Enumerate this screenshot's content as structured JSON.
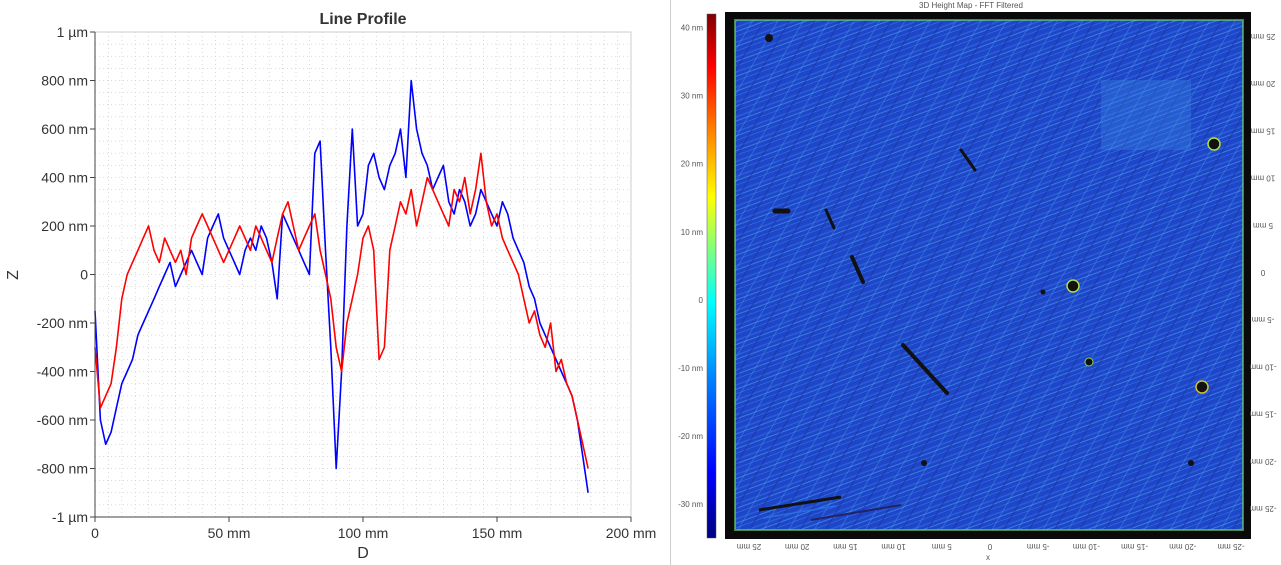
{
  "chart_data": [
    {
      "type": "line",
      "title": "Line Profile",
      "xlabel": "D",
      "ylabel": "Z",
      "xlim": [
        0,
        200
      ],
      "ylim": [
        -1000,
        1000
      ],
      "x_ticks": [
        {
          "value": 0,
          "label": "0"
        },
        {
          "value": 50,
          "label": "50 mm"
        },
        {
          "value": 100,
          "label": "100 mm"
        },
        {
          "value": 150,
          "label": "150 mm"
        },
        {
          "value": 200,
          "label": "200 mm"
        }
      ],
      "y_ticks": [
        {
          "value": 1000,
          "label": "1 µm"
        },
        {
          "value": 800,
          "label": "800 nm"
        },
        {
          "value": 600,
          "label": "600 nm"
        },
        {
          "value": 400,
          "label": "400 nm"
        },
        {
          "value": 200,
          "label": "200 nm"
        },
        {
          "value": 0,
          "label": "0"
        },
        {
          "value": -200,
          "label": "-200 nm"
        },
        {
          "value": -400,
          "label": "-400 nm"
        },
        {
          "value": -600,
          "label": "-600 nm"
        },
        {
          "value": -800,
          "label": "-800 nm"
        },
        {
          "value": -1000,
          "label": "-1 µm"
        }
      ],
      "grid": true,
      "series": [
        {
          "color": "#0000ff",
          "x": [
            0,
            2,
            4,
            6,
            8,
            10,
            12,
            14,
            16,
            18,
            20,
            22,
            24,
            26,
            28,
            30,
            32,
            34,
            36,
            38,
            40,
            42,
            44,
            46,
            48,
            50,
            52,
            54,
            56,
            58,
            60,
            62,
            64,
            66,
            68,
            70,
            72,
            74,
            76,
            78,
            80,
            82,
            84,
            86,
            88,
            90,
            92,
            94,
            96,
            98,
            100,
            102,
            104,
            106,
            108,
            110,
            112,
            114,
            116,
            118,
            120,
            122,
            124,
            126,
            128,
            130,
            132,
            134,
            136,
            138,
            140,
            142,
            144,
            146,
            148,
            150,
            152,
            154,
            156,
            158,
            160,
            162,
            164,
            166,
            168,
            170,
            172,
            174,
            176,
            178,
            180,
            182,
            184
          ],
          "y": [
            -150,
            -600,
            -700,
            -650,
            -550,
            -450,
            -400,
            -350,
            -250,
            -200,
            -150,
            -100,
            -50,
            0,
            50,
            -50,
            0,
            50,
            100,
            50,
            0,
            150,
            200,
            250,
            150,
            100,
            50,
            0,
            100,
            150,
            100,
            200,
            150,
            50,
            -100,
            250,
            200,
            150,
            100,
            50,
            0,
            500,
            550,
            100,
            -300,
            -800,
            -400,
            200,
            600,
            200,
            250,
            450,
            500,
            400,
            350,
            450,
            500,
            600,
            400,
            800,
            600,
            500,
            450,
            350,
            400,
            450,
            300,
            250,
            350,
            300,
            200,
            250,
            350,
            300,
            250,
            200,
            300,
            250,
            150,
            100,
            50,
            -50,
            -100,
            -200,
            -250,
            -300,
            -350,
            -400,
            -450,
            -500,
            -600,
            -750,
            -900
          ]
        },
        {
          "color": "#ff0000",
          "x": [
            0,
            2,
            4,
            6,
            8,
            10,
            12,
            14,
            16,
            18,
            20,
            22,
            24,
            26,
            28,
            30,
            32,
            34,
            36,
            38,
            40,
            42,
            44,
            46,
            48,
            50,
            52,
            54,
            56,
            58,
            60,
            62,
            64,
            66,
            68,
            70,
            72,
            74,
            76,
            78,
            80,
            82,
            84,
            86,
            88,
            90,
            92,
            94,
            96,
            98,
            100,
            102,
            104,
            106,
            108,
            110,
            112,
            114,
            116,
            118,
            120,
            122,
            124,
            126,
            128,
            130,
            132,
            134,
            136,
            138,
            140,
            142,
            144,
            146,
            148,
            150,
            152,
            154,
            156,
            158,
            160,
            162,
            164,
            166,
            168,
            170,
            172,
            174,
            176,
            178,
            180,
            182,
            184
          ],
          "y": [
            -300,
            -550,
            -500,
            -450,
            -300,
            -100,
            0,
            50,
            100,
            150,
            200,
            100,
            50,
            150,
            100,
            50,
            100,
            0,
            150,
            200,
            250,
            200,
            150,
            100,
            50,
            100,
            150,
            200,
            150,
            100,
            200,
            150,
            100,
            50,
            150,
            250,
            300,
            200,
            100,
            150,
            200,
            250,
            100,
            0,
            -100,
            -300,
            -400,
            -200,
            -100,
            0,
            150,
            200,
            100,
            -350,
            -300,
            100,
            200,
            300,
            250,
            350,
            200,
            300,
            400,
            350,
            300,
            250,
            200,
            350,
            300,
            400,
            250,
            350,
            500,
            300,
            200,
            250,
            150,
            100,
            50,
            0,
            -100,
            -200,
            -150,
            -250,
            -300,
            -200,
            -400,
            -350,
            -450,
            -500,
            -600,
            -700,
            -800
          ]
        }
      ]
    },
    {
      "type": "heatmap",
      "title": "3D Height Map - FFT Filtered",
      "xlabel": "x",
      "x_ticks": [
        "25 mm",
        "20 mm",
        "15 mm",
        "10 mm",
        "5 mm",
        "0",
        "-5 mm",
        "-10 mm",
        "-15 mm",
        "-20 mm",
        "-25 mm"
      ],
      "y_ticks": [
        "25 mm",
        "20 mm",
        "15 mm",
        "10 mm",
        "5 mm",
        "0",
        "-5 mm",
        "-10 mm",
        "-15 mm",
        "-20 mm",
        "-25 mm"
      ],
      "colorbar_ticks": [
        "40 nm",
        "30 nm",
        "20 nm",
        "10 nm",
        "0",
        "-10 nm",
        "-20 nm",
        "-30 nm"
      ],
      "colorbar_range": [
        -35,
        42
      ],
      "colormap": [
        "#00007f",
        "#0000ff",
        "#007fff",
        "#00ffff",
        "#7fff7f",
        "#ffff00",
        "#ff7f00",
        "#ff0000",
        "#7f0000"
      ]
    }
  ]
}
